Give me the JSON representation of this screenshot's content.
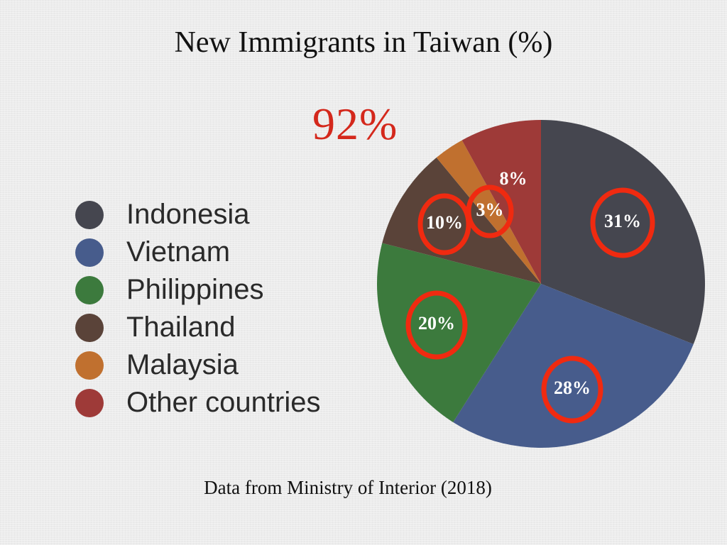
{
  "chart_data": {
    "type": "pie",
    "title": "New Immigrants in Taiwan (%)",
    "highlight": "92%",
    "source": "Data from Ministry of Interior (2018)",
    "legend_position": "left",
    "slices": [
      {
        "name": "Indonesia",
        "value": 31,
        "label": "31%",
        "color": "#45464f",
        "circled": true
      },
      {
        "name": "Vietnam",
        "value": 28,
        "label": "28%",
        "color": "#475c8c",
        "circled": true
      },
      {
        "name": "Philippines",
        "value": 20,
        "label": "20%",
        "color": "#3c7a3d",
        "circled": true
      },
      {
        "name": "Thailand",
        "value": 10,
        "label": "10%",
        "color": "#5a4339",
        "circled": true
      },
      {
        "name": "Malaysia",
        "value": 3,
        "label": "3%",
        "color": "#c0702f",
        "circled": true
      },
      {
        "name": "Other countries",
        "value": 8,
        "label": "8%",
        "color": "#9e3a38",
        "circled": false
      }
    ],
    "annotation_color": "#f02a10"
  }
}
